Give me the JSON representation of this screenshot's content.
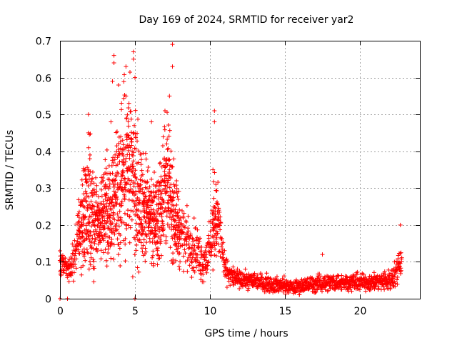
{
  "chart_data": {
    "type": "scatter",
    "title": "Day 169 of 2024, SRMTID for receiver yar2",
    "xlabel": "GPS time / hours",
    "ylabel": "SRMTID / TECUs",
    "xlim": [
      0,
      24
    ],
    "ylim": [
      0,
      0.7
    ],
    "xticks": [
      0,
      5,
      10,
      15,
      20
    ],
    "yticks": [
      0,
      0.1,
      0.2,
      0.3,
      0.4,
      0.5,
      0.6,
      0.7
    ],
    "xtick_labels": [
      "0",
      "5",
      "10",
      "15",
      "20"
    ],
    "ytick_labels": [
      "0",
      "0.1",
      "0.2",
      "0.3",
      "0.4",
      "0.5",
      "0.6",
      "0.7"
    ],
    "grid": true,
    "marker": "+",
    "color": "#ff0000",
    "series": [
      {
        "name": "SRMTID",
        "envelope_x": [
          0.0,
          0.5,
          0.8,
          1.2,
          1.6,
          2.0,
          2.5,
          3.0,
          3.5,
          4.0,
          4.5,
          5.0,
          5.5,
          6.0,
          6.5,
          7.0,
          7.5,
          8.0,
          8.5,
          9.0,
          9.5,
          10.0,
          10.3,
          10.6,
          11.0,
          11.5,
          12.0,
          13.0,
          14.0,
          15.0,
          15.5,
          16.0,
          17.0,
          18.0,
          19.0,
          20.0,
          21.0,
          22.0,
          22.4,
          22.8
        ],
        "envelope_y": [
          0.1,
          0.08,
          0.09,
          0.17,
          0.22,
          0.25,
          0.2,
          0.23,
          0.25,
          0.33,
          0.35,
          0.3,
          0.25,
          0.23,
          0.2,
          0.33,
          0.25,
          0.18,
          0.16,
          0.14,
          0.1,
          0.13,
          0.22,
          0.2,
          0.08,
          0.06,
          0.05,
          0.05,
          0.04,
          0.035,
          0.03,
          0.035,
          0.04,
          0.045,
          0.045,
          0.045,
          0.045,
          0.05,
          0.07,
          0.12
        ],
        "spread": [
          0.03,
          0.02,
          0.04,
          0.08,
          0.12,
          0.14,
          0.1,
          0.11,
          0.16,
          0.2,
          0.2,
          0.18,
          0.12,
          0.1,
          0.1,
          0.16,
          0.12,
          0.08,
          0.07,
          0.06,
          0.05,
          0.06,
          0.1,
          0.08,
          0.03,
          0.025,
          0.02,
          0.02,
          0.02,
          0.018,
          0.015,
          0.018,
          0.02,
          0.02,
          0.02,
          0.02,
          0.02,
          0.025,
          0.03,
          0.05
        ],
        "outliers": [
          [
            0.0,
            0.13
          ],
          [
            0.0,
            0.0
          ],
          [
            0.5,
            0.0
          ],
          [
            5.0,
            0.0
          ],
          [
            1.9,
            0.5
          ],
          [
            1.9,
            0.45
          ],
          [
            3.6,
            0.66
          ],
          [
            3.6,
            0.64
          ],
          [
            3.5,
            0.59
          ],
          [
            4.4,
            0.63
          ],
          [
            4.9,
            0.67
          ],
          [
            4.9,
            0.65
          ],
          [
            5.0,
            0.6
          ],
          [
            4.4,
            0.55
          ],
          [
            4.6,
            0.53
          ],
          [
            7.5,
            0.69
          ],
          [
            7.5,
            0.63
          ],
          [
            7.0,
            0.51
          ],
          [
            7.3,
            0.55
          ],
          [
            10.3,
            0.51
          ],
          [
            10.3,
            0.48
          ],
          [
            10.2,
            0.35
          ],
          [
            10.4,
            0.31
          ],
          [
            3.4,
            0.48
          ],
          [
            17.5,
            0.12
          ],
          [
            22.7,
            0.2
          ],
          [
            2.0,
            0.39
          ],
          [
            6.1,
            0.48
          ]
        ]
      }
    ]
  }
}
